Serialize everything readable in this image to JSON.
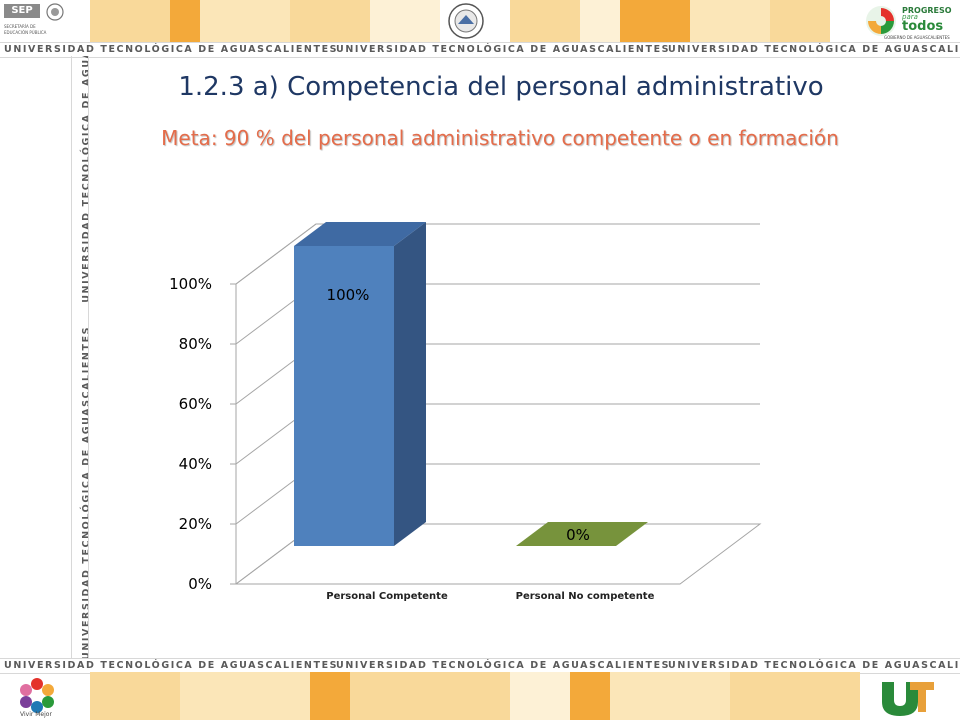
{
  "header": {
    "banner_text": "UNIVERSIDAD TECNOLÓGICA DE AGUASCALIENTES",
    "sep_logo": {
      "name": "SEP",
      "line1": "SECRETARÍA DE",
      "line2": "EDUCACIÓN PÚBLICA"
    },
    "progreso_logo": {
      "line1": "PROGRESO",
      "line2": "para",
      "line3": "todos",
      "line4": "GOBIERNO DE AGUASCALIENTES"
    }
  },
  "footer": {
    "vivir_label": "Vivir Mejor"
  },
  "slide": {
    "title": "1.2.3 a) Competencia del personal administrativo",
    "subtitle": "Meta: 90 % del personal administrativo  competente o en formación"
  },
  "colors": {
    "banner_orange": "#f3a93a",
    "banner_light": "#f9d99a",
    "bar_front": "#4f81bd",
    "bar_side": "#345582",
    "bar_top": "#3f6aa3",
    "bar_green": "#77933c",
    "title": "#1f3864",
    "subtitle": "#e46c4a"
  },
  "chart_data": {
    "type": "bar",
    "style": "3d-column",
    "categories": [
      "Personal Competente",
      "Personal No competente"
    ],
    "values": [
      100,
      0
    ],
    "data_labels": [
      "100%",
      "0%"
    ],
    "yticks": [
      "0%",
      "20%",
      "40%",
      "60%",
      "80%",
      "100%"
    ],
    "ylim": [
      0,
      100
    ],
    "grid": true,
    "legend": "none"
  }
}
